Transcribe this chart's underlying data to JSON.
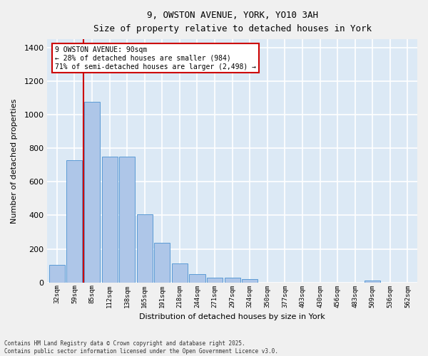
{
  "title_line1": "9, OWSTON AVENUE, YORK, YO10 3AH",
  "title_line2": "Size of property relative to detached houses in York",
  "xlabel": "Distribution of detached houses by size in York",
  "ylabel": "Number of detached properties",
  "categories": [
    "32sqm",
    "59sqm",
    "85sqm",
    "112sqm",
    "138sqm",
    "165sqm",
    "191sqm",
    "218sqm",
    "244sqm",
    "271sqm",
    "297sqm",
    "324sqm",
    "350sqm",
    "377sqm",
    "403sqm",
    "430sqm",
    "456sqm",
    "483sqm",
    "509sqm",
    "536sqm",
    "562sqm"
  ],
  "values": [
    105,
    730,
    1075,
    750,
    750,
    405,
    235,
    115,
    50,
    28,
    28,
    20,
    0,
    0,
    0,
    0,
    0,
    0,
    10,
    0,
    0
  ],
  "bar_color": "#aec6e8",
  "bar_edge_color": "#5b9bd5",
  "bg_color": "#dce9f5",
  "grid_color": "#ffffff",
  "ylim": [
    0,
    1450
  ],
  "yticks": [
    0,
    200,
    400,
    600,
    800,
    1000,
    1200,
    1400
  ],
  "property_line_color": "#cc0000",
  "annotation_title": "9 OWSTON AVENUE: 90sqm",
  "annotation_line2": "← 28% of detached houses are smaller (984)",
  "annotation_line3": "71% of semi-detached houses are larger (2,498) →",
  "annotation_box_color": "#cc0000",
  "footer_line1": "Contains HM Land Registry data © Crown copyright and database right 2025.",
  "footer_line2": "Contains public sector information licensed under the Open Government Licence v3.0."
}
